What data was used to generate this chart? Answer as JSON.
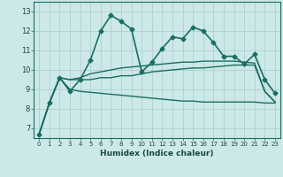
{
  "xlabel": "Humidex (Indice chaleur)",
  "ylabel": "",
  "bg_color": "#cce8e8",
  "grid_color": "#aacccc",
  "line_color": "#1a6e60",
  "xlim": [
    -0.5,
    23.5
  ],
  "ylim": [
    6.5,
    13.5
  ],
  "xticks": [
    0,
    1,
    2,
    3,
    4,
    5,
    6,
    7,
    8,
    9,
    10,
    11,
    12,
    13,
    14,
    15,
    16,
    17,
    18,
    19,
    20,
    21,
    22,
    23
  ],
  "yticks": [
    7,
    8,
    9,
    10,
    11,
    12,
    13
  ],
  "series": [
    {
      "x": [
        0,
        1,
        2,
        3,
        4,
        5,
        6,
        7,
        8,
        9,
        10,
        11,
        12,
        13,
        14,
        15,
        16,
        17,
        18,
        19,
        20,
        21,
        22,
        23
      ],
      "y": [
        6.7,
        8.3,
        9.6,
        8.9,
        9.5,
        10.5,
        12.0,
        12.8,
        12.5,
        12.1,
        9.9,
        10.4,
        11.1,
        11.7,
        11.6,
        12.2,
        12.0,
        11.4,
        10.7,
        10.7,
        10.3,
        10.8,
        9.5,
        8.8
      ],
      "marker": "D",
      "markersize": 2.5,
      "linewidth": 1.2
    },
    {
      "x": [
        0,
        1,
        2,
        3,
        4,
        5,
        6,
        7,
        8,
        9,
        10,
        11,
        12,
        13,
        14,
        15,
        16,
        17,
        18,
        19,
        20,
        21,
        22,
        23
      ],
      "y": [
        6.7,
        8.3,
        9.6,
        9.5,
        9.5,
        9.5,
        9.6,
        9.6,
        9.7,
        9.7,
        9.8,
        9.9,
        9.95,
        10.0,
        10.05,
        10.1,
        10.1,
        10.15,
        10.2,
        10.25,
        10.25,
        10.25,
        8.9,
        8.35
      ],
      "marker": null,
      "markersize": 0,
      "linewidth": 1.0
    },
    {
      "x": [
        0,
        1,
        2,
        3,
        4,
        5,
        6,
        7,
        8,
        9,
        10,
        11,
        12,
        13,
        14,
        15,
        16,
        17,
        18,
        19,
        20,
        21,
        22,
        23
      ],
      "y": [
        6.7,
        8.3,
        9.6,
        9.0,
        8.9,
        8.85,
        8.8,
        8.75,
        8.7,
        8.65,
        8.6,
        8.55,
        8.5,
        8.45,
        8.4,
        8.4,
        8.35,
        8.35,
        8.35,
        8.35,
        8.35,
        8.35,
        8.3,
        8.3
      ],
      "marker": null,
      "markersize": 0,
      "linewidth": 1.0
    },
    {
      "x": [
        0,
        1,
        2,
        3,
        4,
        5,
        6,
        7,
        8,
        9,
        10,
        11,
        12,
        13,
        14,
        15,
        16,
        17,
        18,
        19,
        20,
        21,
        22,
        23
      ],
      "y": [
        6.7,
        8.3,
        9.6,
        9.5,
        9.6,
        9.8,
        9.9,
        10.0,
        10.1,
        10.15,
        10.2,
        10.25,
        10.3,
        10.35,
        10.4,
        10.4,
        10.45,
        10.45,
        10.45,
        10.45,
        10.4,
        10.35,
        8.9,
        8.35
      ],
      "marker": null,
      "markersize": 0,
      "linewidth": 1.0
    }
  ]
}
